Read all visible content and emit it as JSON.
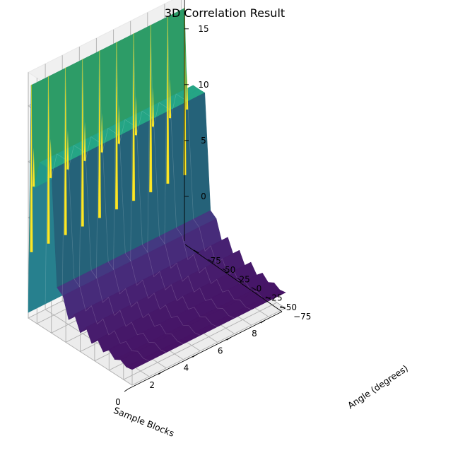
{
  "chart_data": {
    "type": "surface3d",
    "title": "3D Correlation Result",
    "xlabel": "Sample Blocks",
    "ylabel": "Angle (degrees)",
    "zlabel": "",
    "colormap": "viridis",
    "xlim": [
      0,
      9
    ],
    "ylim": [
      -90,
      90
    ],
    "zlim": [
      -4,
      18
    ],
    "x_ticks": [
      0,
      2,
      4,
      6,
      8
    ],
    "y_ticks": [
      -75,
      -50,
      -25,
      0,
      25,
      50,
      75
    ],
    "z_ticks": [
      0,
      5,
      10,
      15
    ],
    "x_tick_labels": [
      "0",
      "2",
      "4",
      "6",
      "8"
    ],
    "y_tick_labels": [
      "−75",
      "−50",
      "−25",
      "0",
      "25",
      "50",
      "75"
    ],
    "z_tick_labels": [
      "0",
      "5",
      "10",
      "15"
    ],
    "surface_profile": {
      "description_free": true,
      "angle": [
        -90,
        -80,
        -70,
        -60,
        -50,
        -40,
        -30,
        -20,
        -10,
        0,
        10,
        20,
        30,
        40,
        50,
        60,
        70,
        80,
        85,
        90
      ],
      "value": [
        -2.6,
        -2.7,
        -2.4,
        -2.7,
        -2.2,
        -2.7,
        -1.9,
        -2.6,
        -1.5,
        -2.3,
        -1.0,
        -1.8,
        0.0,
        0.4,
        10.6,
        10.6,
        10.6,
        8.0,
        17.0,
        -3.5
      ]
    },
    "spike_blocks": [
      0,
      1,
      2,
      3,
      4,
      5,
      6,
      7,
      8,
      9
    ],
    "spike_peak": 17,
    "grid": true
  },
  "colors": {
    "pane": "#f2f2f2",
    "grid": "#b0b0b0",
    "viridis_low": "#440154",
    "viridis_high": "#fde725"
  }
}
